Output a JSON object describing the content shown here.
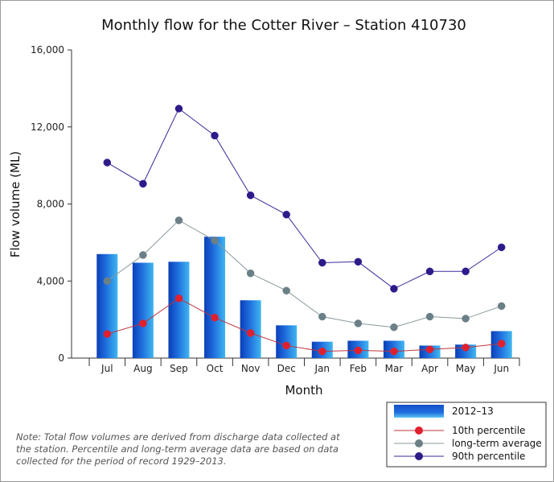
{
  "chart_data": {
    "type": "bar",
    "title": "Monthly flow for the Cotter River – Station 410730",
    "xlabel": "Month",
    "ylabel": "Flow volume (ML)",
    "ylim": [
      0,
      16000
    ],
    "yticks": [
      0,
      4000,
      8000,
      12000,
      16000
    ],
    "ytick_labels": [
      "0",
      "4,000",
      "8,000",
      "12,000",
      "16,000"
    ],
    "categories": [
      "Jul",
      "Aug",
      "Sep",
      "Oct",
      "Nov",
      "Dec",
      "Jan",
      "Feb",
      "Mar",
      "Apr",
      "May",
      "Jun"
    ],
    "series": [
      {
        "name": "2012–13",
        "type": "bar",
        "color": "#1a66d6",
        "values": [
          5400,
          4950,
          5000,
          6300,
          3000,
          1700,
          850,
          900,
          900,
          650,
          700,
          1400
        ]
      },
      {
        "name": "10th percentile",
        "type": "line",
        "color": "#e0202e",
        "line_color": "#c0343c",
        "values": [
          1250,
          1800,
          3100,
          2100,
          1300,
          650,
          350,
          400,
          350,
          450,
          550,
          750
        ]
      },
      {
        "name": "long-term average",
        "type": "line",
        "color": "#6b7f86",
        "line_color": "#8a9a9e",
        "values": [
          4000,
          5350,
          7150,
          6100,
          4400,
          3500,
          2150,
          1800,
          1600,
          2150,
          2050,
          2700
        ]
      },
      {
        "name": "90th percentile",
        "type": "line",
        "color": "#2f1a8a",
        "line_color": "#3a2a9a",
        "values": [
          10150,
          9050,
          12950,
          11550,
          8450,
          7450,
          4950,
          5000,
          3600,
          4500,
          4500,
          5750
        ]
      }
    ],
    "grid": false,
    "legend": "bottom-right",
    "note": "Note: Total flow volumes are derived from discharge data collected at the station. Percentile and long-term average data are based on data collected for the period of record 1929–2013."
  }
}
